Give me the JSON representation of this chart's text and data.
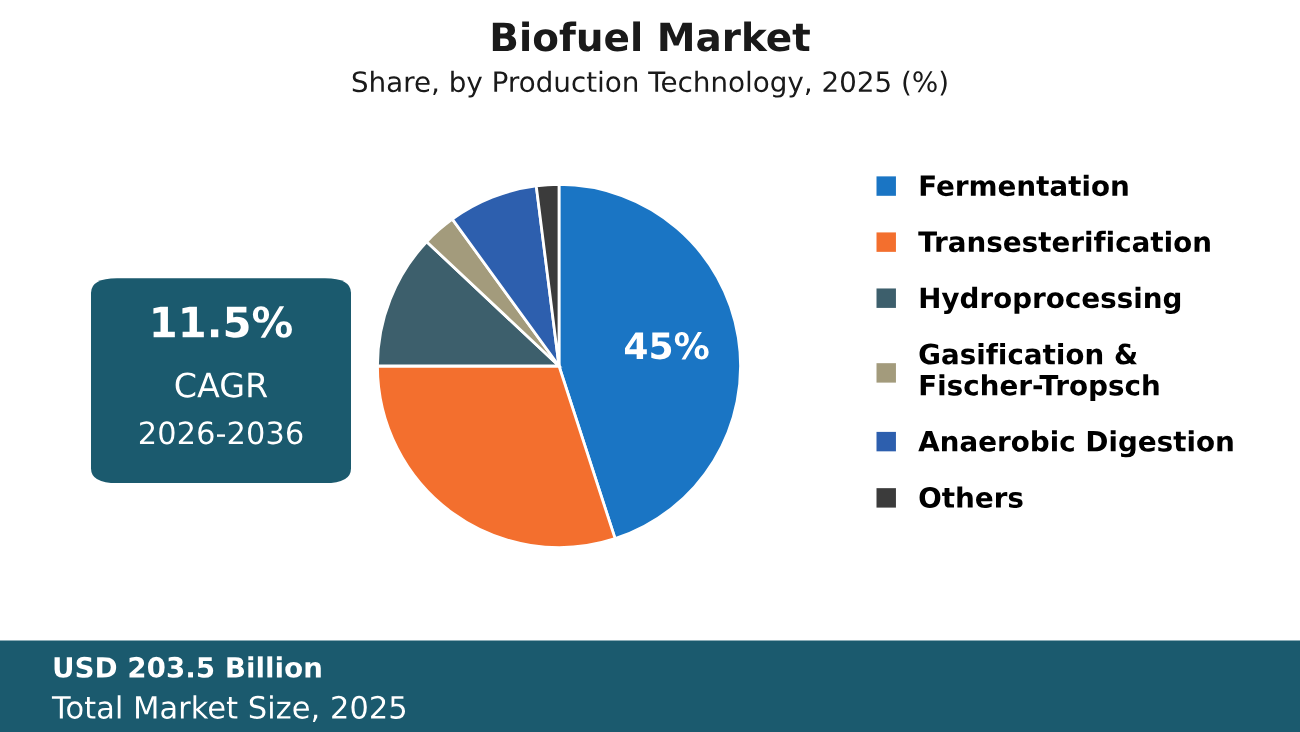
{
  "chart_data": {
    "type": "pie",
    "title": "Biofuel Market",
    "subtitle": "Share, by Production Technology, 2025 (%)",
    "categories": [
      "Fermentation",
      "Transesterification",
      "Hydroprocessing",
      "Gasification &\nFischer-Tropsch",
      "Anaerobic Digestion",
      "Others"
    ],
    "values": [
      45,
      30,
      12,
      3,
      8,
      2
    ],
    "colors": [
      "#1a75c4",
      "#f36f2e",
      "#3d5f6c",
      "#a39b7c",
      "#2d5fae",
      "#3b3b3b"
    ],
    "value_labels": [
      "45%",
      null,
      null,
      null,
      null,
      null
    ],
    "legend": "right",
    "annotations": [
      "11.5%",
      "CAGR",
      "2026-2036",
      "USD 203.5 Billion",
      "Total Market Size, 2025"
    ]
  }
}
